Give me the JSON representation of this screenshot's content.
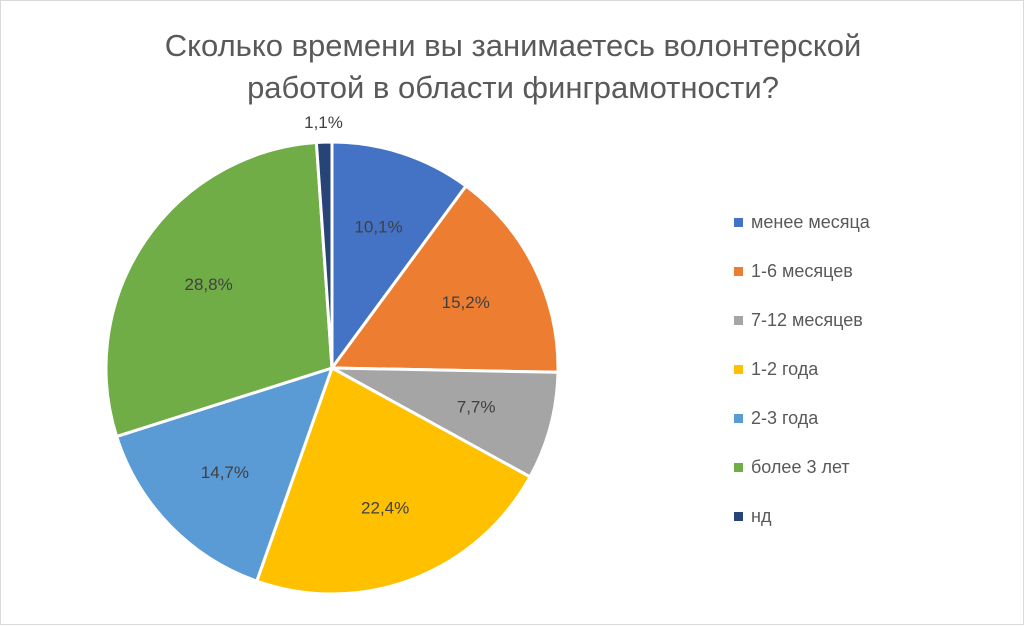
{
  "chart_data": {
    "type": "pie",
    "title_line1": "Сколько времени вы занимаетесь волонтерской",
    "title_line2": "работой в области финграмотности?",
    "categories": [
      "менее месяца",
      "1-6 месяцев",
      "7-12 месяцев",
      "1-2 года",
      "2-3 года",
      "более 3 лет",
      "нд"
    ],
    "values": [
      10.1,
      15.2,
      7.7,
      22.4,
      14.7,
      28.8,
      1.1
    ],
    "value_labels": [
      "10,1%",
      "15,2%",
      "7,7%",
      "22,4%",
      "14,7%",
      "28,8%",
      "1,1%"
    ],
    "colors": [
      "#4472c4",
      "#ed7d31",
      "#a5a5a5",
      "#ffc000",
      "#5b9bd5",
      "#70ad47",
      "#264478"
    ],
    "legend_position": "right"
  }
}
